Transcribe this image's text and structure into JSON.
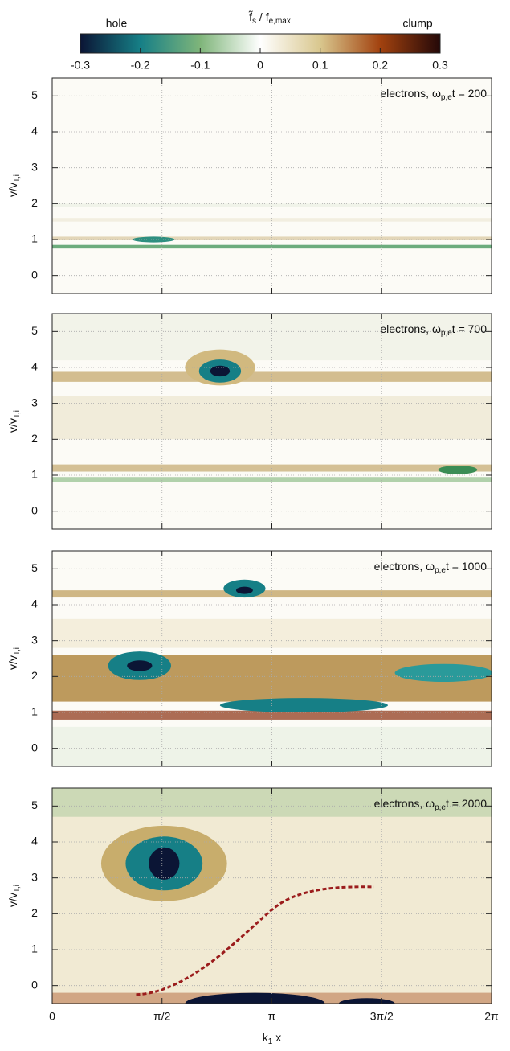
{
  "chart_data": {
    "type": "heatmap",
    "colorbar": {
      "title": [
        "f̃",
        "s",
        " / f",
        "e,max"
      ],
      "left_label": "hole",
      "right_label": "clump",
      "lim": [
        -0.3,
        0.3
      ],
      "ticks": [
        -0.3,
        -0.2,
        -0.1,
        0,
        0.1,
        0.2,
        0.3
      ],
      "colors": [
        "#0b1535",
        "#167f86",
        "#7fb57a",
        "#ffffff",
        "#d9c78e",
        "#a2420f",
        "#240808"
      ]
    },
    "xlim": [
      0,
      6.2832
    ],
    "xticks": [
      0,
      {
        "value": 1.5708,
        "label": "π/2"
      },
      {
        "value": 3.1416,
        "label": "π"
      },
      {
        "value": 4.7124,
        "label": "3π/2"
      },
      {
        "value": 6.2832,
        "label": "2π"
      }
    ],
    "xlabel": [
      "k",
      "1",
      " x"
    ],
    "ylim": [
      -0.5,
      5.5
    ],
    "yticks": [
      0,
      1,
      2,
      3,
      4,
      5
    ],
    "ylabel": [
      "v/v",
      "T,i"
    ],
    "grid": true,
    "panels": [
      {
        "annotation": [
          "electrons, ω",
          "p,e",
          "t = 200"
        ]
      },
      {
        "annotation": [
          "electrons, ω",
          "p,e",
          "t = 700"
        ]
      },
      {
        "annotation": [
          "electrons, ω",
          "p,e",
          "t = 1000"
        ]
      },
      {
        "annotation": [
          "electrons, ω",
          "p,e",
          "t = 2000"
        ]
      }
    ]
  }
}
